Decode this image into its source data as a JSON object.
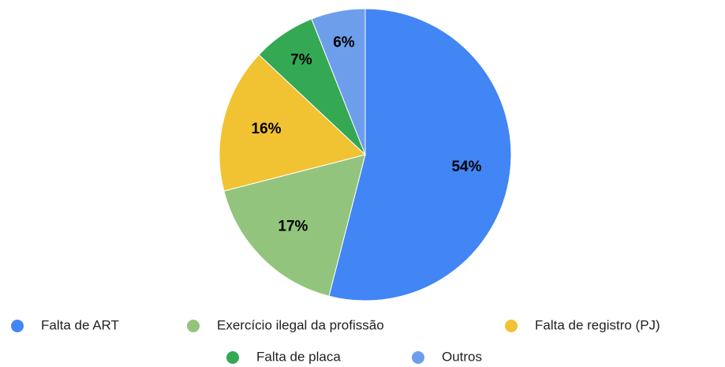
{
  "chart_data": {
    "type": "pie",
    "categories": [
      "Falta de ART",
      "Exercício ilegal da profissão",
      "Falta de registro (PJ)",
      "Falta de placa",
      "Outros"
    ],
    "values": [
      54,
      17,
      16,
      7,
      6
    ],
    "value_labels": [
      "54%",
      "17%",
      "16%",
      "7%",
      "6%"
    ],
    "colors": [
      "#4285f4",
      "#93c47d",
      "#f1c232",
      "#34a853",
      "#6d9eeb"
    ],
    "legend": "bottom"
  }
}
